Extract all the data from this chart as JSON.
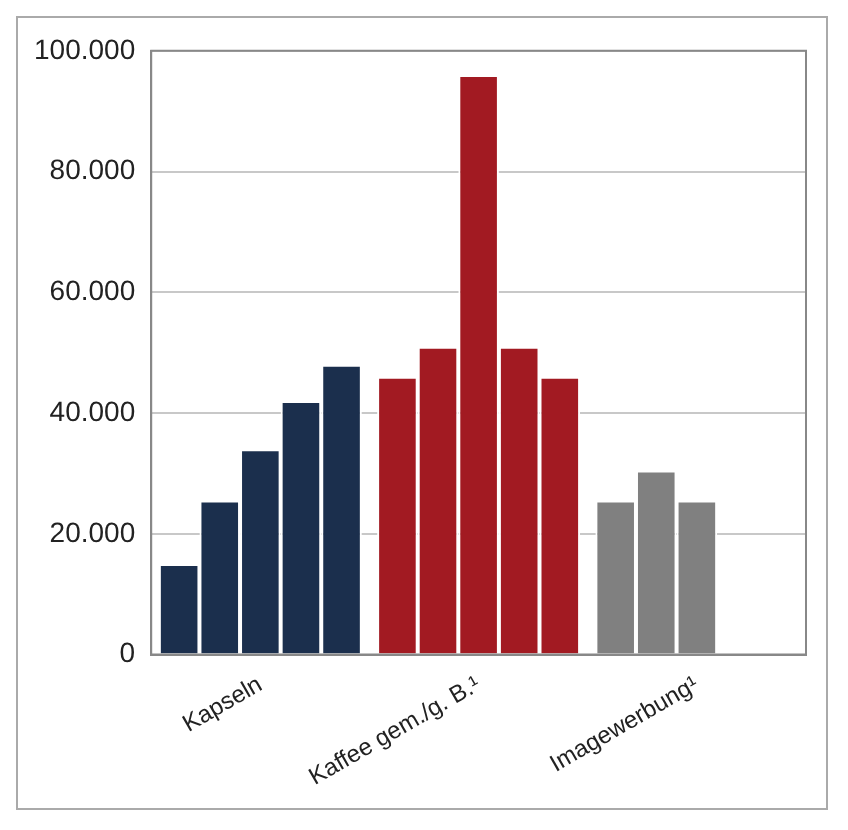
{
  "chart_data": {
    "type": "bar",
    "categories": [
      "Kapseln",
      "Kaffee gem./g. B.¹",
      "Imagewerbung¹"
    ],
    "series": [
      {
        "colors": [
          "#1b2f4d",
          "#a21a22",
          "#808080"
        ],
        "values": [
          15000,
          46000,
          25500
        ]
      },
      {
        "colors": [
          "#1b2f4d",
          "#a21a22",
          "#808080"
        ],
        "values": [
          25500,
          51000,
          30500
        ]
      },
      {
        "colors": [
          "#1b2f4d",
          "#a21a22",
          "#808080"
        ],
        "values": [
          34000,
          96000,
          25500
        ]
      },
      {
        "colors": [
          "#1b2f4d",
          "#a21a22",
          "#808080"
        ],
        "values": [
          42000,
          51000,
          null
        ]
      },
      {
        "colors": [
          "#1b2f4d",
          "#a21a22",
          "#808080"
        ],
        "values": [
          48000,
          46000,
          null
        ]
      }
    ],
    "ylim": [
      0,
      100000
    ],
    "yticks": [
      0,
      {
        "value": 20000,
        "label": "20.000"
      },
      {
        "value": 40000,
        "label": "40.000"
      },
      {
        "value": 60000,
        "label": "60.000"
      },
      {
        "value": 80000,
        "label": "80.000"
      },
      {
        "value": 100000,
        "label": "100.000"
      }
    ],
    "grid": "y",
    "legend": false
  }
}
